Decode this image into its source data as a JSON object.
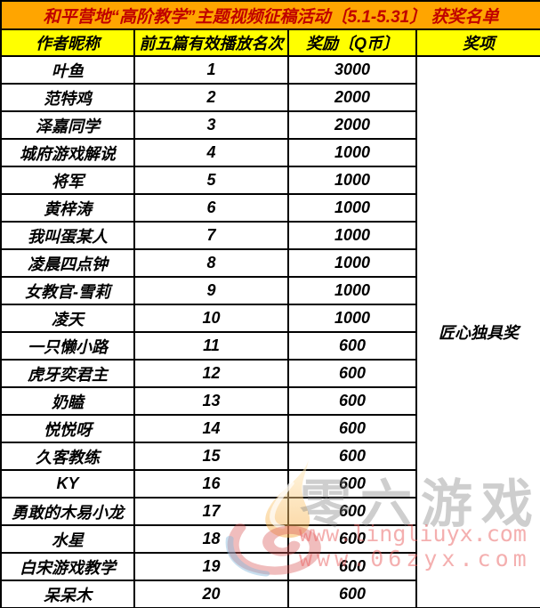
{
  "title": "和平营地“高阶教学”主题视频征稿活动〔5.1-5.31〕 获奖名单",
  "table": {
    "columns": [
      "作者昵称",
      "前五篇有效播放名次",
      "奖励〔Q币〕",
      "奖项"
    ],
    "prize_label": "匠心独具奖",
    "rows": [
      {
        "author": "叶鱼",
        "rank": "1",
        "reward": "3000"
      },
      {
        "author": "范特鸡",
        "rank": "2",
        "reward": "2000"
      },
      {
        "author": "泽嘉同学",
        "rank": "3",
        "reward": "2000"
      },
      {
        "author": "城府游戏解说",
        "rank": "4",
        "reward": "1000"
      },
      {
        "author": "将军",
        "rank": "5",
        "reward": "1000"
      },
      {
        "author": "黄梓涛",
        "rank": "6",
        "reward": "1000"
      },
      {
        "author": "我叫蛋某人",
        "rank": "7",
        "reward": "1000"
      },
      {
        "author": "凌晨四点钟",
        "rank": "8",
        "reward": "1000"
      },
      {
        "author": "女教官-雪莉",
        "rank": "9",
        "reward": "1000"
      },
      {
        "author": "凌天",
        "rank": "10",
        "reward": "1000"
      },
      {
        "author": "一只懒小路",
        "rank": "11",
        "reward": "600"
      },
      {
        "author": "虎牙奕君主",
        "rank": "12",
        "reward": "600"
      },
      {
        "author": "奶瞌",
        "rank": "13",
        "reward": "600"
      },
      {
        "author": "悦悦呀",
        "rank": "14",
        "reward": "600"
      },
      {
        "author": "久客教练",
        "rank": "15",
        "reward": "600"
      },
      {
        "author": "KY",
        "rank": "16",
        "reward": "600"
      },
      {
        "author": "勇敢的木易小龙",
        "rank": "17",
        "reward": "600"
      },
      {
        "author": "水星",
        "rank": "18",
        "reward": "600"
      },
      {
        "author": "白宋游戏教学",
        "rank": "19",
        "reward": "600"
      },
      {
        "author": "呆呆木",
        "rank": "20",
        "reward": "600"
      }
    ]
  },
  "watermark": {
    "brand_text": "零六游戏",
    "url_line1": "www.lingliuyx.com",
    "url_line2": "www.06zyx.com",
    "logo": "flame-spiral-logo"
  },
  "colors": {
    "title_bg": "#FFA500",
    "title_text": "#C00000",
    "header_bg": "#FFFF00",
    "header_text": "#000000",
    "body_bg": "#FFFFFF",
    "border": "#000000",
    "watermark_gray": "#7D7D7D",
    "watermark_red": "#E95F5F"
  }
}
